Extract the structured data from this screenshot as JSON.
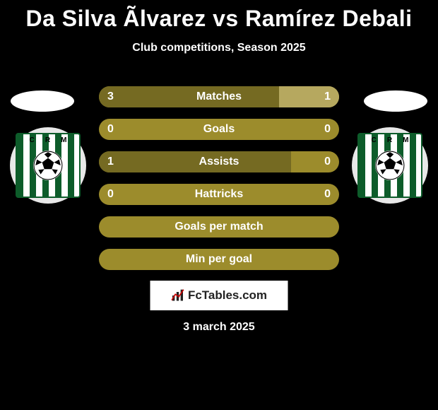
{
  "header": {
    "player_a": "Da Silva Ãlvarez",
    "vs": "vs",
    "player_b": "Ramírez Debali",
    "subtitle": "Club competitions, Season 2025"
  },
  "colors": {
    "bar_base": "#9c8c2c",
    "player_a_fill": "#756a22",
    "player_b_fill": "#b6a85f",
    "text": "#ffffff",
    "background": "#000000",
    "crest_stripe_dark": "#0d5c2a",
    "crest_stripe_light": "#ffffff"
  },
  "crest": {
    "letters": [
      "C",
      "R",
      "M"
    ]
  },
  "stats": [
    {
      "label": "Matches",
      "a": "3",
      "b": "1",
      "a_pct": 75,
      "b_pct": 25,
      "show_values": true
    },
    {
      "label": "Goals",
      "a": "0",
      "b": "0",
      "a_pct": 0,
      "b_pct": 0,
      "show_values": true
    },
    {
      "label": "Assists",
      "a": "1",
      "b": "0",
      "a_pct": 80,
      "b_pct": 0,
      "show_values": true
    },
    {
      "label": "Hattricks",
      "a": "0",
      "b": "0",
      "a_pct": 0,
      "b_pct": 0,
      "show_values": true
    },
    {
      "label": "Goals per match",
      "a": "",
      "b": "",
      "a_pct": 0,
      "b_pct": 0,
      "show_values": false
    },
    {
      "label": "Min per goal",
      "a": "",
      "b": "",
      "a_pct": 0,
      "b_pct": 0,
      "show_values": false
    }
  ],
  "footer": {
    "brand": "FcTables.com",
    "date": "3 march 2025"
  }
}
